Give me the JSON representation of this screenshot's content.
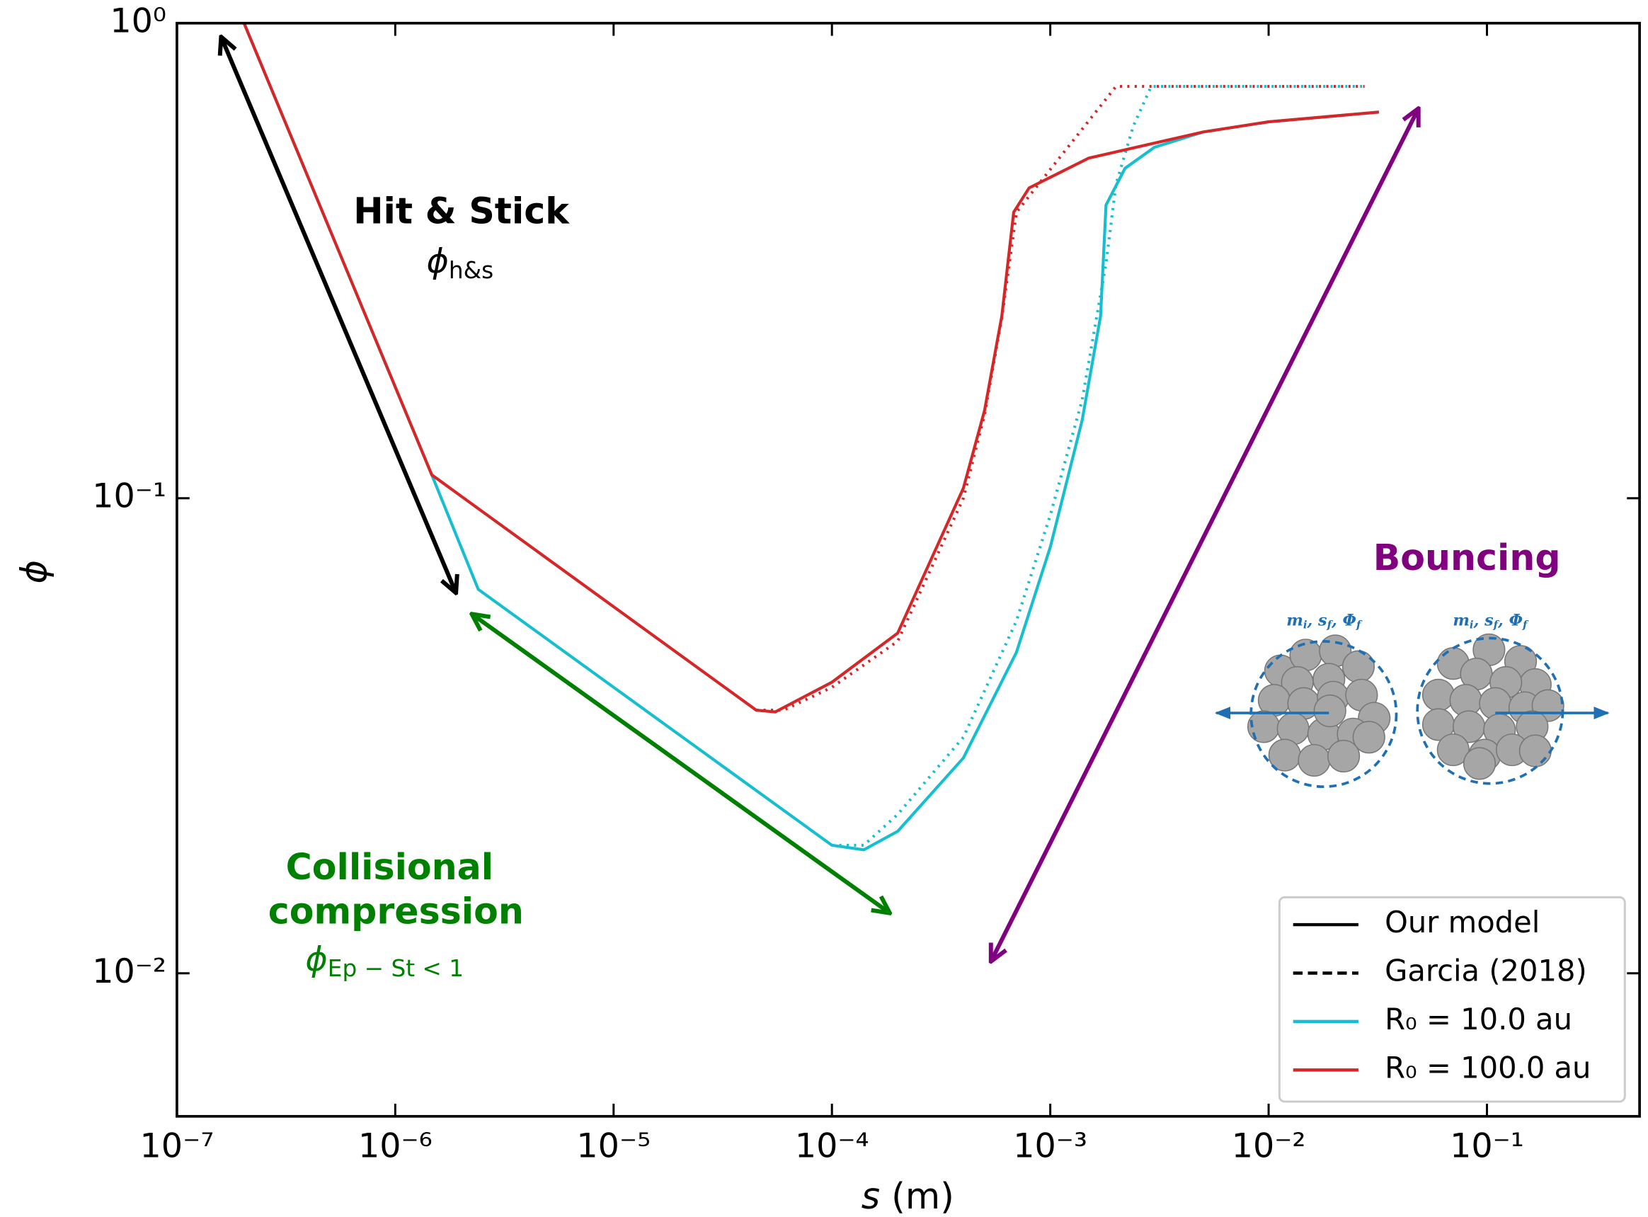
{
  "chart_data": {
    "type": "line",
    "x_label": [
      "s",
      " (m)"
    ],
    "y_label": "ϕ",
    "xscale": "log",
    "yscale": "log",
    "xlim": [
      1e-07,
      0.5
    ],
    "ylim": [
      0.005,
      1
    ],
    "xticks": [
      {
        "value": 1e-07,
        "label": "10⁻⁷"
      },
      {
        "value": 1e-06,
        "label": "10⁻⁶"
      },
      {
        "value": 1e-05,
        "label": "10⁻⁵"
      },
      {
        "value": 0.0001,
        "label": "10⁻⁴"
      },
      {
        "value": 0.001,
        "label": "10⁻³"
      },
      {
        "value": 0.01,
        "label": "10⁻²"
      },
      {
        "value": 0.1,
        "label": "10⁻¹"
      }
    ],
    "yticks": [
      {
        "value": 1,
        "label": "10⁰"
      },
      {
        "value": 0.1,
        "label": "10⁻¹"
      },
      {
        "value": 0.01,
        "label": "10⁻²"
      }
    ],
    "series": [
      {
        "color": "#17becf",
        "linestyle": "solid",
        "x": [
          2.03e-07,
          1.47e-06,
          2.4e-06,
          0.0001,
          0.00014,
          0.0002,
          0.0004,
          0.0007,
          0.001,
          0.0014,
          0.0017,
          0.0018,
          0.0022,
          0.003,
          0.005,
          0.01,
          0.032
        ],
        "values": [
          1.0,
          0.112,
          0.0643,
          0.0186,
          0.0182,
          0.0199,
          0.0284,
          0.0474,
          0.0789,
          0.146,
          0.242,
          0.414,
          0.495,
          0.548,
          0.59,
          0.62,
          0.65
        ]
      },
      {
        "color": "#17becf",
        "linestyle": "dotted",
        "x": [
          0.0001,
          0.00014,
          0.0002,
          0.0004,
          0.0007,
          0.001,
          0.0014,
          0.0018,
          0.002,
          0.0024,
          0.0029,
          0.0275
        ],
        "values": [
          0.0186,
          0.0186,
          0.0216,
          0.0314,
          0.0552,
          0.0921,
          0.161,
          0.312,
          0.458,
          0.607,
          0.736,
          0.736
        ]
      },
      {
        "color": "#d62728",
        "linestyle": "solid",
        "x": [
          2.03e-07,
          1.47e-06,
          4.5e-05,
          5.5e-05,
          0.0001,
          0.0002,
          0.0004,
          0.0005,
          0.0006,
          0.00068,
          0.0008,
          0.0015,
          0.005,
          0.01,
          0.032
        ],
        "values": [
          1.0,
          0.112,
          0.0358,
          0.0355,
          0.041,
          0.052,
          0.105,
          0.153,
          0.242,
          0.4,
          0.45,
          0.52,
          0.59,
          0.62,
          0.65
        ]
      },
      {
        "color": "#d62728",
        "linestyle": "dotted",
        "x": [
          4.5e-05,
          6e-05,
          0.0001,
          0.0002,
          0.0004,
          0.0005,
          0.0006,
          0.0007,
          0.002,
          0.0275
        ],
        "values": [
          0.0358,
          0.0358,
          0.04,
          0.05,
          0.1,
          0.15,
          0.24,
          0.4,
          0.736,
          0.736
        ]
      }
    ],
    "legend_position": "lower right",
    "legend": [
      {
        "label": "Our model",
        "color": "#000000",
        "linestyle": "solid"
      },
      {
        "label": "Garcia (2018)",
        "color": "#000000",
        "linestyle": "dashed"
      },
      {
        "label": "R₀ = 10.0 au",
        "color": "#17becf",
        "linestyle": "solid"
      },
      {
        "label": "R₀ = 100.0 au",
        "color": "#d62728",
        "linestyle": "solid"
      }
    ],
    "annotations": {
      "hit_stick": {
        "title": "Hit & Stick",
        "symbol": "ϕ",
        "subscript": "h&s"
      },
      "collisional": {
        "title": [
          "Collisional",
          "compression"
        ],
        "symbol": "ϕ",
        "subscript": "Ep − St < 1"
      },
      "bouncing": {
        "title": "Bouncing"
      },
      "inset_labels": [
        [
          "m",
          "i",
          ", s",
          "f",
          ", Φ",
          "f"
        ],
        [
          "m",
          "i",
          ", s",
          "f",
          ", Φ",
          "f"
        ]
      ]
    }
  }
}
